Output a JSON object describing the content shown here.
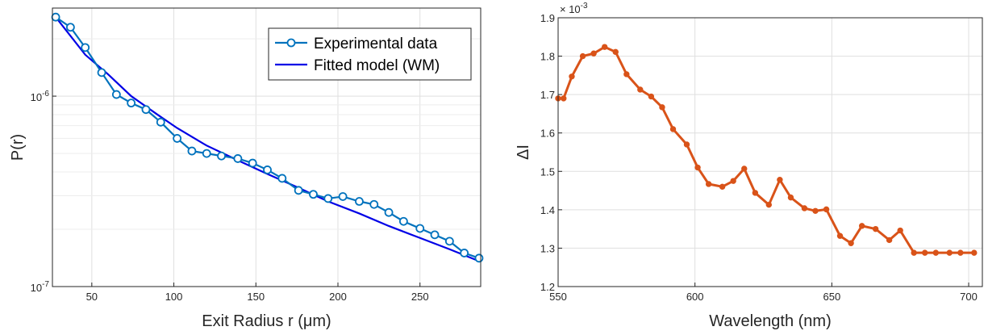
{
  "colors": {
    "experimental": "#0072BD",
    "fitted": "#0000E6",
    "delta": "#D95319",
    "axis": "#262626",
    "grid": "#DFDFDF"
  },
  "chart_data": [
    {
      "type": "line",
      "scale_y": "log",
      "xlabel": "Exit Radius r (μm)",
      "ylabel": "P(r)",
      "xlim": [
        26,
        287
      ],
      "ylim": [
        1e-07,
        2.9e-06
      ],
      "x_ticks": [
        "50",
        "100",
        "150",
        "200",
        "250"
      ],
      "y_ticks": [
        "10-7",
        "10-6"
      ],
      "grid": true,
      "legend": {
        "position": "top-right",
        "entries": [
          "Experimental data",
          "Fitted model (WM)"
        ]
      },
      "series": [
        {
          "name": "Experimental data",
          "marker": "circle",
          "x": [
            28,
            37,
            46,
            56,
            65,
            74,
            83,
            92,
            102,
            111,
            120,
            129,
            139,
            148,
            157,
            166,
            176,
            185,
            194,
            203,
            213,
            222,
            231,
            240,
            250,
            259,
            268,
            277,
            286
          ],
          "y": [
            2.6e-06,
            2.3e-06,
            1.8e-06,
            1.33e-06,
            1.02e-06,
            9.2e-07,
            8.5e-07,
            7.3e-07,
            6e-07,
            5.15e-07,
            5e-07,
            4.85e-07,
            4.7e-07,
            4.45e-07,
            4.1e-07,
            3.7e-07,
            3.2e-07,
            3.05e-07,
            2.9e-07,
            2.97e-07,
            2.8e-07,
            2.7e-07,
            2.45e-07,
            2.2e-07,
            2.02e-07,
            1.87e-07,
            1.73e-07,
            1.5e-07,
            1.41e-07
          ]
        },
        {
          "name": "Fitted model (WM)",
          "marker": "none",
          "x": [
            28,
            46,
            60,
            74,
            90,
            102,
            120,
            139,
            157,
            176,
            194,
            213,
            231,
            250,
            268,
            286
          ],
          "y": [
            2.6e-06,
            1.65e-06,
            1.3e-06,
            1e-06,
            8e-07,
            6.8e-07,
            5.5e-07,
            4.6e-07,
            3.9e-07,
            3.3e-07,
            2.8e-07,
            2.42e-07,
            2.08e-07,
            1.8e-07,
            1.57e-07,
            1.36e-07
          ]
        }
      ]
    },
    {
      "type": "line",
      "xlabel": "Wavelength (nm)",
      "ylabel": "ΔI",
      "exponent_label": "× 10-3",
      "xlim": [
        550,
        705
      ],
      "ylim": [
        1.2,
        1.9
      ],
      "x_ticks": [
        "550",
        "600",
        "650",
        "700"
      ],
      "y_ticks": [
        "1.2",
        "1.3",
        "1.4",
        "1.5",
        "1.6",
        "1.7",
        "1.8",
        "1.9"
      ],
      "grid": true,
      "series": [
        {
          "name": "",
          "marker": "dot",
          "x": [
            550,
            552,
            555,
            559,
            563,
            567,
            571,
            575,
            580,
            584,
            588,
            592,
            597,
            601,
            605,
            610,
            614,
            618,
            622,
            627,
            631,
            635,
            640,
            644,
            648,
            653,
            657,
            661,
            666,
            671,
            675,
            680,
            684,
            688,
            693,
            697,
            702
          ],
          "y": [
            1.69,
            1.69,
            1.747,
            1.8,
            1.807,
            1.824,
            1.811,
            1.753,
            1.713,
            1.695,
            1.667,
            1.61,
            1.57,
            1.51,
            1.467,
            1.46,
            1.475,
            1.507,
            1.444,
            1.413,
            1.478,
            1.432,
            1.404,
            1.397,
            1.401,
            1.332,
            1.313,
            1.358,
            1.35,
            1.321,
            1.346,
            1.288,
            1.288,
            1.288,
            1.288,
            1.288,
            1.288
          ]
        }
      ]
    }
  ]
}
